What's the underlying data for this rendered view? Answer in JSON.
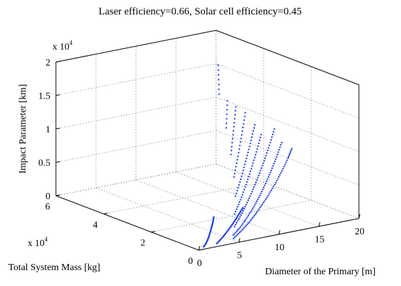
{
  "chart_data": {
    "type": "scatter",
    "dimensions": "3d",
    "title": "Laser efficiency=0.66, Solar cell efficiency=0.45",
    "xlabel": "Diameter of the Primary [m]",
    "ylabel": "Total System Mass [kg]",
    "zlabel": "Impact Parameter [km]",
    "x_ticks": [
      "0",
      "5",
      "10",
      "15",
      "20"
    ],
    "y_ticks": [
      "0",
      "2",
      "4",
      "6"
    ],
    "y_multiplier": "x 10",
    "y_multiplier_exp": "4",
    "z_ticks": [
      "0",
      "0.5",
      "1",
      "1.5",
      "2"
    ],
    "z_multiplier": "x 10",
    "z_multiplier_exp": "4",
    "xlim": [
      0,
      20
    ],
    "ylim": [
      0,
      60000
    ],
    "zlim": [
      0,
      20000
    ],
    "grid": true,
    "marker_color": "#1f3fff",
    "series": [
      {
        "points": [
          [
            0.9,
            1000,
            150
          ],
          [
            1.4,
            1800,
            350
          ],
          [
            1.9,
            2800,
            600
          ],
          [
            2.4,
            3900,
            850
          ],
          [
            2.9,
            5100,
            1150
          ],
          [
            3.4,
            6300,
            1450
          ],
          [
            3.9,
            7500,
            1750
          ],
          [
            4.4,
            8800,
            2050
          ],
          [
            4.9,
            10200,
            2400
          ]
        ]
      },
      {
        "points": [
          [
            2.6,
            1200,
            200
          ],
          [
            3.5,
            2400,
            500
          ],
          [
            4.4,
            3800,
            800
          ],
          [
            5.3,
            5200,
            1150
          ],
          [
            6.2,
            6700,
            1500
          ],
          [
            7.1,
            8200,
            1900
          ],
          [
            8.0,
            9800,
            2300
          ],
          [
            8.9,
            11400,
            2700
          ]
        ]
      },
      {
        "points": [
          [
            4.8,
            1600,
            400
          ],
          [
            6.3,
            3400,
            900
          ],
          [
            7.8,
            5300,
            1500
          ],
          [
            9.3,
            7400,
            2200
          ],
          [
            10.8,
            9600,
            3000
          ],
          [
            12.3,
            11800,
            3900
          ],
          [
            13.8,
            14100,
            4900
          ],
          [
            15.3,
            16500,
            6000
          ],
          [
            16.8,
            19000,
            7200
          ],
          [
            17.8,
            20800,
            8100
          ]
        ]
      },
      {
        "points": [
          [
            5.2,
            3000,
            600
          ],
          [
            6.7,
            5000,
            1200
          ],
          [
            8.2,
            7200,
            2000
          ],
          [
            9.7,
            9500,
            2900
          ],
          [
            11.2,
            12000,
            3900
          ],
          [
            12.7,
            14600,
            5000
          ],
          [
            14.2,
            17300,
            6200
          ],
          [
            15.7,
            20100,
            7500
          ],
          [
            17.2,
            23000,
            8900
          ]
        ]
      },
      {
        "points": [
          [
            6.0,
            5200,
            1400
          ],
          [
            7.6,
            7800,
            2400
          ],
          [
            9.2,
            10600,
            3500
          ],
          [
            10.8,
            13500,
            4700
          ],
          [
            12.4,
            16500,
            6000
          ],
          [
            14.0,
            19600,
            7400
          ],
          [
            15.6,
            22800,
            8900
          ],
          [
            17.2,
            26100,
            10500
          ]
        ]
      },
      {
        "points": [
          [
            7.0,
            8500,
            2600
          ],
          [
            8.7,
            11700,
            3900
          ],
          [
            10.4,
            15100,
            5300
          ],
          [
            12.1,
            18600,
            6800
          ],
          [
            13.8,
            22200,
            8400
          ],
          [
            15.5,
            25900,
            10100
          ]
        ]
      },
      {
        "points": [
          [
            8.3,
            12500,
            4400
          ],
          [
            10.1,
            16300,
            6000
          ],
          [
            11.9,
            20300,
            7700
          ],
          [
            13.7,
            24400,
            9400
          ],
          [
            15.5,
            28600,
            11200
          ]
        ]
      },
      {
        "points": [
          [
            9.6,
            17500,
            6300
          ],
          [
            11.5,
            22200,
            8300
          ],
          [
            13.4,
            27000,
            10400
          ],
          [
            15.3,
            31900,
            12600
          ]
        ]
      },
      {
        "points": [
          [
            11.0,
            23500,
            8500
          ],
          [
            12.9,
            28800,
            10900
          ],
          [
            14.8,
            34200,
            13300
          ]
        ]
      },
      {
        "points": [
          [
            12.5,
            30500,
            11200
          ],
          [
            14.4,
            36400,
            14000
          ]
        ]
      },
      {
        "points": [
          [
            14.0,
            38500,
            14800
          ],
          [
            15.8,
            45000,
            17800
          ]
        ]
      }
    ]
  }
}
